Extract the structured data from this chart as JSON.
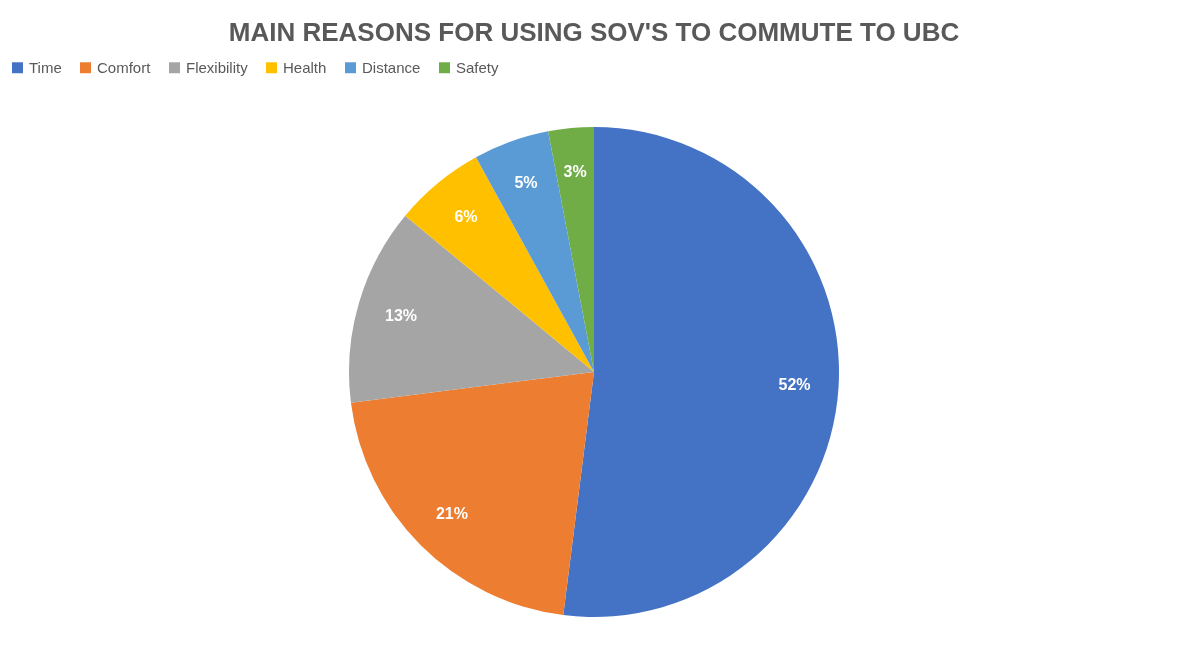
{
  "chart_data": {
    "type": "pie",
    "title": "MAIN REASONS FOR USING SOV'S TO COMMUTE TO UBC",
    "categories": [
      "Time",
      "Comfort",
      "Flexibility",
      "Health",
      "Distance",
      "Safety"
    ],
    "values": [
      52,
      21,
      13,
      6,
      5,
      3
    ],
    "colors": [
      "#4472c4",
      "#ed7d31",
      "#a5a5a5",
      "#ffc000",
      "#5b9bd5",
      "#70ad47"
    ],
    "value_labels": [
      "52%",
      "21%",
      "13%",
      "6%",
      "5%",
      "3%"
    ],
    "legend": "top"
  }
}
